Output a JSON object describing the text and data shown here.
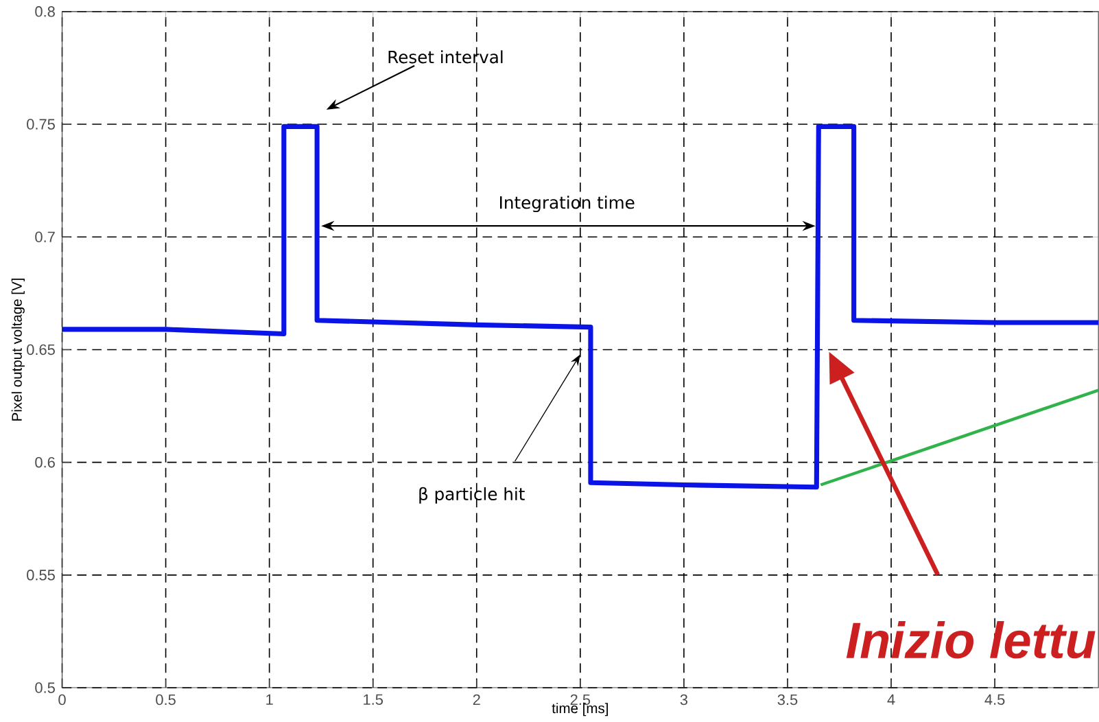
{
  "chart_data": {
    "type": "line",
    "xlabel": "time [ms]",
    "ylabel": "Pixel output voltage [V]",
    "xlim": [
      0,
      5.0
    ],
    "ylim": [
      0.5,
      0.8
    ],
    "xticks": [
      0,
      0.5,
      1,
      1.5,
      2,
      2.5,
      3,
      3.5,
      4,
      4.5
    ],
    "yticks": [
      0.5,
      0.55,
      0.6,
      0.65,
      0.7,
      0.75,
      0.8
    ],
    "grid": true,
    "marker": "none",
    "series": [
      {
        "color": "#0a14e6",
        "line_style": "solid",
        "x": [
          0,
          0.5,
          1.07,
          1.07,
          1.23,
          1.23,
          2.0,
          2.55,
          2.55,
          3.0,
          3.64,
          3.65,
          3.82,
          3.82,
          4.5,
          5.0
        ],
        "values": [
          0.659,
          0.659,
          0.657,
          0.749,
          0.749,
          0.663,
          0.661,
          0.66,
          0.591,
          0.59,
          0.589,
          0.749,
          0.749,
          0.663,
          0.662,
          0.662
        ]
      },
      {
        "color": "#2fb34a",
        "line_style": "solid",
        "x": [
          3.66,
          5.0
        ],
        "values": [
          0.59,
          0.632
        ]
      }
    ],
    "annotations": [
      "Reset interval",
      "Integration time",
      "β particle hit",
      "Inizio lettu"
    ]
  }
}
